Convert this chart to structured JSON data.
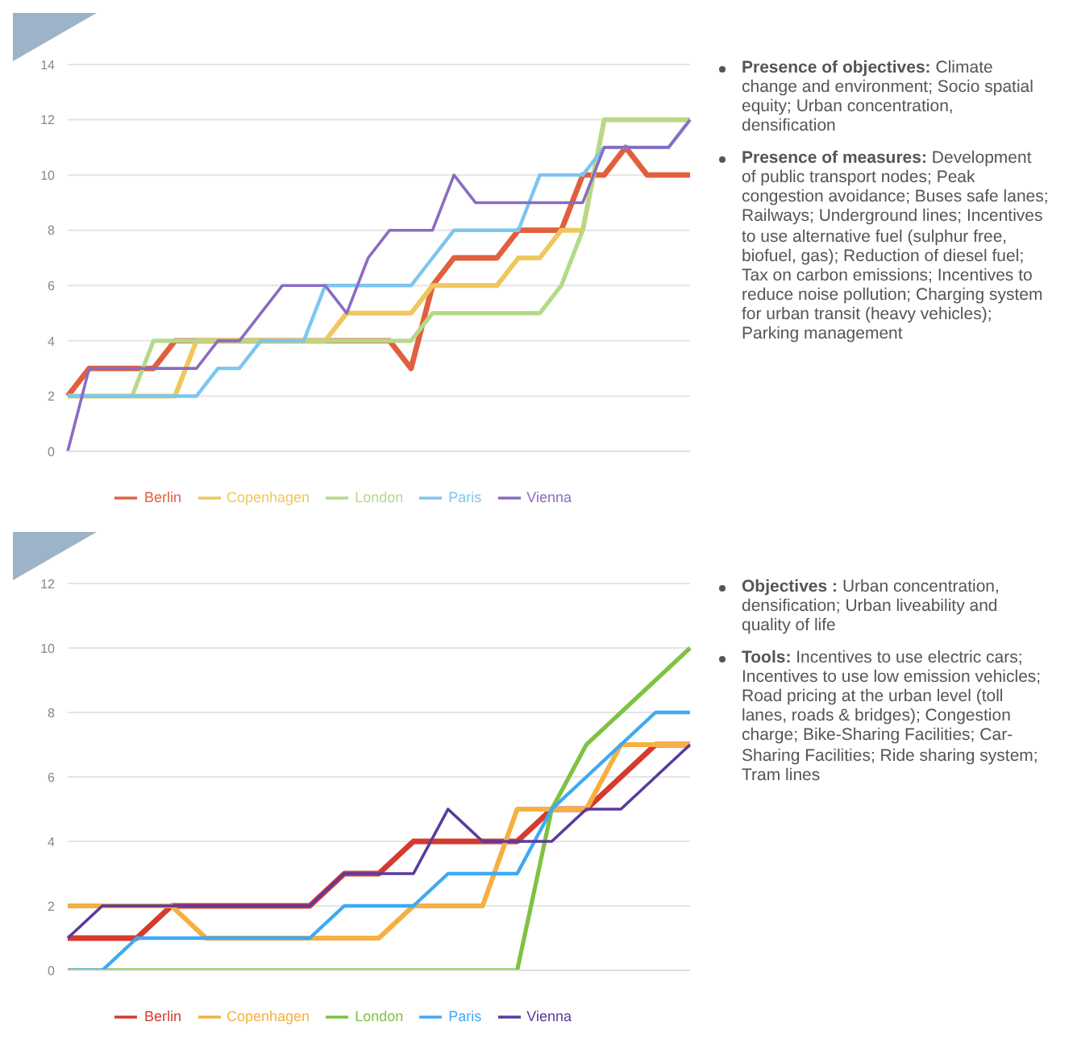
{
  "chart_data": [
    {
      "type": "line",
      "categories": [
        null,
        null,
        null,
        null,
        null,
        null,
        null,
        null,
        null,
        null,
        null,
        null,
        null,
        null,
        null,
        null,
        null,
        null,
        null,
        null,
        null,
        null,
        null,
        null,
        null,
        null,
        null,
        null,
        null,
        null
      ],
      "series": [
        {
          "name": "Berlin",
          "color": "#e0603e",
          "values": [
            2,
            3,
            3,
            3,
            3,
            4,
            4,
            4,
            4,
            4,
            4,
            4,
            4,
            4,
            4,
            4,
            3,
            6,
            7,
            7,
            7,
            8,
            8,
            8,
            10,
            10,
            11,
            10,
            10,
            10
          ]
        },
        {
          "name": "Copenhagen",
          "color": "#f0c75e",
          "values": [
            2,
            2,
            2,
            2,
            2,
            2,
            4,
            4,
            4,
            4,
            4,
            4,
            4,
            5,
            5,
            5,
            5,
            6,
            6,
            6,
            6,
            7,
            7,
            8,
            8,
            12,
            12,
            12,
            12,
            12
          ]
        },
        {
          "name": "London",
          "color": "#b5d98a",
          "values": [
            2,
            2,
            2,
            2,
            4,
            4,
            4,
            4,
            4,
            4,
            4,
            4,
            4,
            4,
            4,
            4,
            4,
            5,
            5,
            5,
            5,
            5,
            5,
            6,
            8,
            12,
            12,
            12,
            12,
            12
          ]
        },
        {
          "name": "Paris",
          "color": "#7cc6ef",
          "values": [
            2,
            2,
            2,
            2,
            2,
            2,
            2,
            3,
            3,
            4,
            4,
            4,
            6,
            6,
            6,
            6,
            6,
            7,
            8,
            8,
            8,
            8,
            10,
            10,
            10,
            11,
            11,
            11,
            11,
            12
          ]
        },
        {
          "name": "Vienna",
          "color": "#8a6cc2",
          "values": [
            0,
            3,
            3,
            3,
            3,
            3,
            3,
            4,
            4,
            5,
            6,
            6,
            6,
            5,
            7,
            8,
            8,
            8,
            10,
            9,
            9,
            9,
            9,
            9,
            9,
            11,
            11,
            11,
            11,
            12
          ]
        }
      ],
      "ylim": [
        0,
        14
      ],
      "yticks": [
        0,
        2,
        4,
        6,
        8,
        10,
        12,
        14
      ],
      "grid": "y",
      "legend": "bottom",
      "tick_labels": "y",
      "marker": "none",
      "line_style": "solid",
      "annotations": [
        "Presence of objectives: Climate change and environment; Socio spatial equity; Urban concentration, densification",
        "Presence of measures: Development of public transport nodes; Peak congestion avoidance; Buses safe lanes; Railways; Underground lines; Incentives to use alternative fuel (sulphur free, biofuel, gas); Reduction of diesel fuel; Tax on carbon emissions; Incentives to reduce noise pollution; Charging system for urban transit (heavy vehicles); Parking management"
      ]
    },
    {
      "type": "line",
      "categories": [
        null,
        null,
        null,
        null,
        null,
        null,
        null,
        null,
        null,
        null,
        null,
        null,
        null,
        null,
        null,
        null,
        null,
        null,
        null
      ],
      "series": [
        {
          "name": "Berlin",
          "color": "#d63a2f",
          "values": [
            1,
            1,
            1,
            2,
            2,
            2,
            2,
            2,
            3,
            3,
            4,
            4,
            4,
            4,
            5,
            5,
            6,
            7,
            7
          ]
        },
        {
          "name": "Copenhagen",
          "color": "#f5b041",
          "values": [
            2,
            2,
            2,
            2,
            1,
            1,
            1,
            1,
            1,
            1,
            2,
            2,
            2,
            5,
            5,
            5,
            7,
            7,
            7
          ]
        },
        {
          "name": "London",
          "color": "#7fc241",
          "values": [
            0,
            0,
            0,
            0,
            0,
            0,
            0,
            0,
            0,
            0,
            0,
            0,
            0,
            0,
            5,
            7,
            8,
            9,
            10
          ]
        },
        {
          "name": "Paris",
          "color": "#3fa9f5",
          "values": [
            0,
            0,
            1,
            1,
            1,
            1,
            1,
            1,
            2,
            2,
            2,
            3,
            3,
            3,
            5,
            6,
            7,
            8,
            8
          ]
        },
        {
          "name": "Vienna",
          "color": "#5b3a9e",
          "values": [
            1,
            2,
            2,
            2,
            2,
            2,
            2,
            2,
            3,
            3,
            3,
            5,
            4,
            4,
            4,
            5,
            5,
            6,
            7
          ]
        }
      ],
      "ylim": [
        0,
        12
      ],
      "yticks": [
        0,
        2,
        4,
        6,
        8,
        10,
        12
      ],
      "grid": "y",
      "legend": "bottom",
      "tick_labels": "y",
      "marker": "none",
      "line_style": "solid",
      "annotations": [
        "Objectives : Urban concentration, densification; Urban liveability and quality of life",
        "Tools: Incentives to use electric cars; Incentives to use low emission vehicles; Road pricing at the urban level (toll lanes, roads & bridges); Congestion charge; Bike-Sharing Facilities; Car-Sharing Facilities; Ride sharing system; Tram lines"
      ]
    }
  ]
}
